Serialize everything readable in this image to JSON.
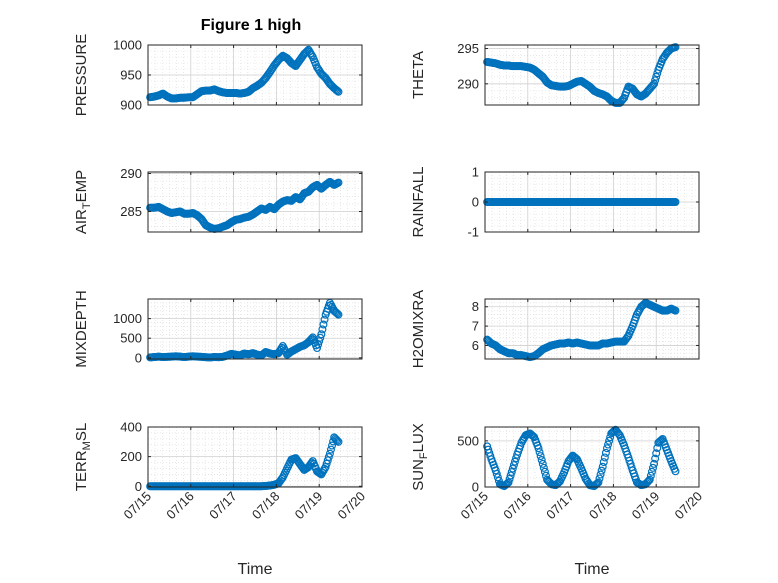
{
  "figure": {
    "title": "Figure 1 high",
    "marker_color": "#0072BD",
    "grid": "major+minor",
    "x_ticks": [
      "07/15",
      "07/16",
      "07/17",
      "07/18",
      "07/19",
      "07/20"
    ]
  },
  "chart_data": [
    {
      "type": "scatter",
      "ylabel": "PRESSURE",
      "xlabel": "",
      "title": "Figure 1 high",
      "xlim": [
        0,
        5
      ],
      "ylim": [
        900,
        1000
      ],
      "yticks": [
        900,
        950,
        1000
      ],
      "x": [
        0.05,
        0.15,
        0.25,
        0.35,
        0.45,
        0.55,
        0.65,
        0.75,
        0.85,
        0.95,
        1.05,
        1.15,
        1.25,
        1.35,
        1.45,
        1.55,
        1.65,
        1.75,
        1.85,
        1.95,
        2.05,
        2.15,
        2.25,
        2.35,
        2.45,
        2.55,
        2.65,
        2.75,
        2.85,
        2.95,
        3.05,
        3.15,
        3.25,
        3.35,
        3.45,
        3.55,
        3.65,
        3.75,
        3.85,
        3.95,
        4.05,
        4.15,
        4.25,
        4.35,
        4.45
      ],
      "y": [
        913,
        914,
        916,
        919,
        914,
        911,
        911,
        912,
        912,
        913,
        913,
        918,
        923,
        924,
        924,
        926,
        923,
        921,
        920,
        920,
        920,
        919,
        920,
        922,
        928,
        932,
        937,
        945,
        955,
        966,
        975,
        982,
        978,
        970,
        965,
        975,
        985,
        992,
        980,
        963,
        952,
        945,
        935,
        928,
        922
      ]
    },
    {
      "type": "scatter",
      "ylabel": "THETA",
      "xlabel": "",
      "xlim": [
        0,
        5
      ],
      "ylim": [
        287,
        295.5
      ],
      "yticks": [
        290,
        295
      ],
      "x": [
        0.05,
        0.15,
        0.25,
        0.35,
        0.45,
        0.55,
        0.65,
        0.75,
        0.85,
        0.95,
        1.05,
        1.15,
        1.25,
        1.35,
        1.45,
        1.55,
        1.65,
        1.75,
        1.85,
        1.95,
        2.05,
        2.15,
        2.25,
        2.35,
        2.45,
        2.55,
        2.65,
        2.75,
        2.85,
        2.95,
        3.05,
        3.15,
        3.25,
        3.35,
        3.45,
        3.55,
        3.65,
        3.75,
        3.85,
        3.95,
        4.05,
        4.15,
        4.25,
        4.35,
        4.45
      ],
      "y": [
        293.1,
        293.0,
        292.9,
        292.7,
        292.6,
        292.6,
        292.5,
        292.5,
        292.5,
        292.4,
        292.3,
        292.0,
        291.5,
        291.0,
        290.2,
        289.8,
        289.7,
        289.6,
        289.6,
        289.7,
        290.0,
        290.3,
        290.4,
        290.0,
        289.6,
        289.0,
        288.7,
        288.5,
        288.2,
        287.6,
        287.3,
        287.3,
        288.0,
        289.6,
        289.3,
        288.5,
        288.2,
        288.6,
        289.3,
        290.0,
        292.0,
        293.5,
        294.4,
        295.0,
        295.2
      ]
    },
    {
      "type": "scatter",
      "ylabel": "AIR_TEMP",
      "xlabel": "",
      "xlim": [
        0,
        5
      ],
      "ylim": [
        282.3,
        290.2
      ],
      "yticks": [
        285,
        290
      ],
      "x": [
        0.05,
        0.15,
        0.25,
        0.35,
        0.45,
        0.55,
        0.65,
        0.75,
        0.85,
        0.95,
        1.05,
        1.15,
        1.25,
        1.35,
        1.45,
        1.55,
        1.65,
        1.75,
        1.85,
        1.95,
        2.05,
        2.15,
        2.25,
        2.35,
        2.45,
        2.55,
        2.65,
        2.75,
        2.85,
        2.95,
        3.05,
        3.15,
        3.25,
        3.35,
        3.45,
        3.55,
        3.65,
        3.75,
        3.85,
        3.95,
        4.05,
        4.15,
        4.25,
        4.35,
        4.45
      ],
      "y": [
        285.5,
        285.5,
        285.6,
        285.3,
        285.0,
        284.8,
        284.9,
        285.0,
        284.7,
        284.7,
        284.8,
        284.5,
        284.0,
        283.2,
        282.9,
        282.7,
        282.8,
        283.0,
        283.2,
        283.6,
        283.9,
        284.0,
        284.2,
        284.3,
        284.6,
        285.0,
        285.4,
        285.2,
        285.6,
        285.3,
        285.9,
        286.3,
        286.5,
        286.4,
        286.9,
        286.6,
        287.4,
        287.6,
        288.2,
        288.5,
        288.0,
        288.5,
        288.9,
        288.5,
        288.8
      ]
    },
    {
      "type": "scatter",
      "ylabel": "RAINFALL",
      "xlabel": "",
      "xlim": [
        0,
        5
      ],
      "ylim": [
        -1,
        1
      ],
      "yticks": [
        -1,
        0,
        1
      ],
      "x": [
        0.05,
        0.15,
        0.25,
        0.35,
        0.45,
        0.55,
        0.65,
        0.75,
        0.85,
        0.95,
        1.05,
        1.15,
        1.25,
        1.35,
        1.45,
        1.55,
        1.65,
        1.75,
        1.85,
        1.95,
        2.05,
        2.15,
        2.25,
        2.35,
        2.45,
        2.55,
        2.65,
        2.75,
        2.85,
        2.95,
        3.05,
        3.15,
        3.25,
        3.35,
        3.45,
        3.55,
        3.65,
        3.75,
        3.85,
        3.95,
        4.05,
        4.15,
        4.25,
        4.35,
        4.45
      ],
      "y": [
        0,
        0,
        0,
        0,
        0,
        0,
        0,
        0,
        0,
        0,
        0,
        0,
        0,
        0,
        0,
        0,
        0,
        0,
        0,
        0,
        0,
        0,
        0,
        0,
        0,
        0,
        0,
        0,
        0,
        0,
        0,
        0,
        0,
        0,
        0,
        0,
        0,
        0,
        0,
        0,
        0,
        0,
        0,
        0,
        0
      ]
    },
    {
      "type": "scatter",
      "ylabel": "MIXDEPTH",
      "xlabel": "",
      "xlim": [
        0,
        5
      ],
      "ylim": [
        -30,
        1500
      ],
      "yticks": [
        0,
        500,
        1000
      ],
      "x": [
        0.05,
        0.15,
        0.25,
        0.35,
        0.45,
        0.55,
        0.65,
        0.75,
        0.85,
        0.95,
        1.05,
        1.15,
        1.25,
        1.35,
        1.45,
        1.55,
        1.65,
        1.75,
        1.85,
        1.95,
        2.05,
        2.15,
        2.25,
        2.35,
        2.45,
        2.55,
        2.65,
        2.75,
        2.85,
        2.95,
        3.05,
        3.15,
        3.25,
        3.35,
        3.45,
        3.55,
        3.65,
        3.75,
        3.85,
        3.95,
        4.05,
        4.15,
        4.25,
        4.35,
        4.45
      ],
      "y": [
        10,
        20,
        30,
        20,
        25,
        30,
        40,
        30,
        20,
        30,
        40,
        30,
        25,
        15,
        10,
        20,
        15,
        25,
        60,
        100,
        80,
        60,
        110,
        90,
        120,
        80,
        60,
        150,
        110,
        90,
        120,
        300,
        80,
        160,
        220,
        280,
        320,
        400,
        520,
        250,
        600,
        1100,
        1400,
        1200,
        1100
      ]
    },
    {
      "type": "scatter",
      "ylabel": "H2OMIXRA",
      "xlabel": "",
      "xlim": [
        0,
        5
      ],
      "ylim": [
        5.3,
        8.4
      ],
      "yticks": [
        6,
        7,
        8
      ],
      "x": [
        0.05,
        0.15,
        0.25,
        0.35,
        0.45,
        0.55,
        0.65,
        0.75,
        0.85,
        0.95,
        1.05,
        1.15,
        1.25,
        1.35,
        1.45,
        1.55,
        1.65,
        1.75,
        1.85,
        1.95,
        2.05,
        2.15,
        2.25,
        2.35,
        2.45,
        2.55,
        2.65,
        2.75,
        2.85,
        2.95,
        3.05,
        3.15,
        3.25,
        3.35,
        3.45,
        3.55,
        3.65,
        3.75,
        3.85,
        3.95,
        4.05,
        4.15,
        4.25,
        4.35,
        4.45
      ],
      "y": [
        6.3,
        6.1,
        6.0,
        5.8,
        5.7,
        5.6,
        5.6,
        5.5,
        5.5,
        5.45,
        5.4,
        5.45,
        5.6,
        5.8,
        5.9,
        6.0,
        6.05,
        6.1,
        6.1,
        6.15,
        6.1,
        6.15,
        6.1,
        6.05,
        6.0,
        6.0,
        6.0,
        6.1,
        6.1,
        6.15,
        6.2,
        6.2,
        6.2,
        6.5,
        7.0,
        7.6,
        8.0,
        8.2,
        8.1,
        8.0,
        7.9,
        7.8,
        7.8,
        7.9,
        7.8
      ]
    },
    {
      "type": "scatter",
      "ylabel": "TERR_MSL",
      "xlabel": "Time",
      "xlim": [
        0,
        5
      ],
      "ylim": [
        -5,
        400
      ],
      "yticks": [
        0,
        200,
        400
      ],
      "x": [
        0.05,
        0.15,
        0.25,
        0.35,
        0.45,
        0.55,
        0.65,
        0.75,
        0.85,
        0.95,
        1.05,
        1.15,
        1.25,
        1.35,
        1.45,
        1.55,
        1.65,
        1.75,
        1.85,
        1.95,
        2.05,
        2.15,
        2.25,
        2.35,
        2.45,
        2.55,
        2.65,
        2.75,
        2.85,
        2.95,
        3.05,
        3.15,
        3.25,
        3.35,
        3.45,
        3.55,
        3.65,
        3.75,
        3.85,
        3.95,
        4.05,
        4.15,
        4.25,
        4.35,
        4.45
      ],
      "y": [
        0,
        0,
        0,
        0,
        0,
        0,
        0,
        0,
        0,
        0,
        0,
        0,
        0,
        0,
        0,
        0,
        0,
        0,
        0,
        0,
        0,
        0,
        0,
        0,
        0,
        0,
        0,
        2,
        5,
        10,
        20,
        60,
        120,
        180,
        190,
        150,
        110,
        130,
        170,
        100,
        80,
        130,
        220,
        330,
        300
      ]
    },
    {
      "type": "scatter",
      "ylabel": "SUN_FLUX",
      "xlabel": "Time",
      "xlim": [
        0,
        5
      ],
      "ylim": [
        0,
        650
      ],
      "yticks": [
        0,
        500
      ],
      "x": [
        0.05,
        0.15,
        0.25,
        0.35,
        0.45,
        0.55,
        0.65,
        0.75,
        0.85,
        0.95,
        1.05,
        1.15,
        1.25,
        1.35,
        1.45,
        1.55,
        1.65,
        1.75,
        1.85,
        1.95,
        2.05,
        2.15,
        2.25,
        2.35,
        2.45,
        2.55,
        2.65,
        2.75,
        2.85,
        2.95,
        3.05,
        3.15,
        3.25,
        3.35,
        3.45,
        3.55,
        3.65,
        3.75,
        3.85,
        3.95,
        4.05,
        4.15,
        4.25,
        4.35,
        4.45
      ],
      "y": [
        440,
        300,
        180,
        30,
        10,
        50,
        200,
        350,
        480,
        560,
        580,
        540,
        420,
        250,
        80,
        30,
        20,
        60,
        160,
        280,
        340,
        300,
        200,
        90,
        20,
        10,
        50,
        220,
        420,
        580,
        620,
        560,
        450,
        320,
        180,
        50,
        20,
        30,
        80,
        250,
        480,
        520,
        400,
        280,
        170
      ]
    }
  ]
}
